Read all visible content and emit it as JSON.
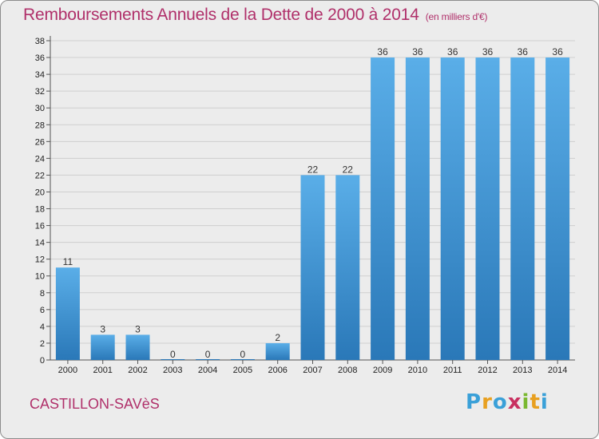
{
  "header": {
    "title": "Remboursements Annuels de la Dette de 2000 à 2014",
    "unit": "(en milliers d'€)"
  },
  "footer": {
    "commune": "CASTILLON-SAVèS",
    "brand_letters": [
      "P",
      "r",
      "o",
      "x",
      "i",
      "t",
      "i"
    ],
    "brand_colors": [
      "#3aa0d8",
      "#e8a020",
      "#3aa0d8",
      "#c83060",
      "#7ab830",
      "#e8a020",
      "#3aa0d8"
    ]
  },
  "chart_data": {
    "type": "bar",
    "title": "Remboursements Annuels de la Dette de 2000 à 2014",
    "categories": [
      "2000",
      "2001",
      "2002",
      "2003",
      "2004",
      "2005",
      "2006",
      "2007",
      "2008",
      "2009",
      "2010",
      "2011",
      "2012",
      "2013",
      "2014"
    ],
    "values": [
      11,
      3,
      3,
      0,
      0,
      0,
      2,
      22,
      22,
      36,
      36,
      36,
      36,
      36,
      36
    ],
    "value_labels": [
      "11",
      "3",
      "3",
      "0",
      "0",
      "0",
      "2",
      "22",
      "22",
      "36",
      "36",
      "36",
      "36",
      "36",
      "36"
    ],
    "ylim": [
      0,
      38
    ],
    "yticks": [
      "0",
      "2",
      "4",
      "6",
      "8",
      "10",
      "12",
      "14",
      "16",
      "18",
      "20",
      "22",
      "24",
      "26",
      "28",
      "30",
      "32",
      "34",
      "36",
      "38"
    ],
    "grid": true,
    "colors": {
      "bar_top": "#5aaee8",
      "bar_bottom": "#2a78b8",
      "grid": "#cfcfcf",
      "axis": "#555555"
    }
  }
}
